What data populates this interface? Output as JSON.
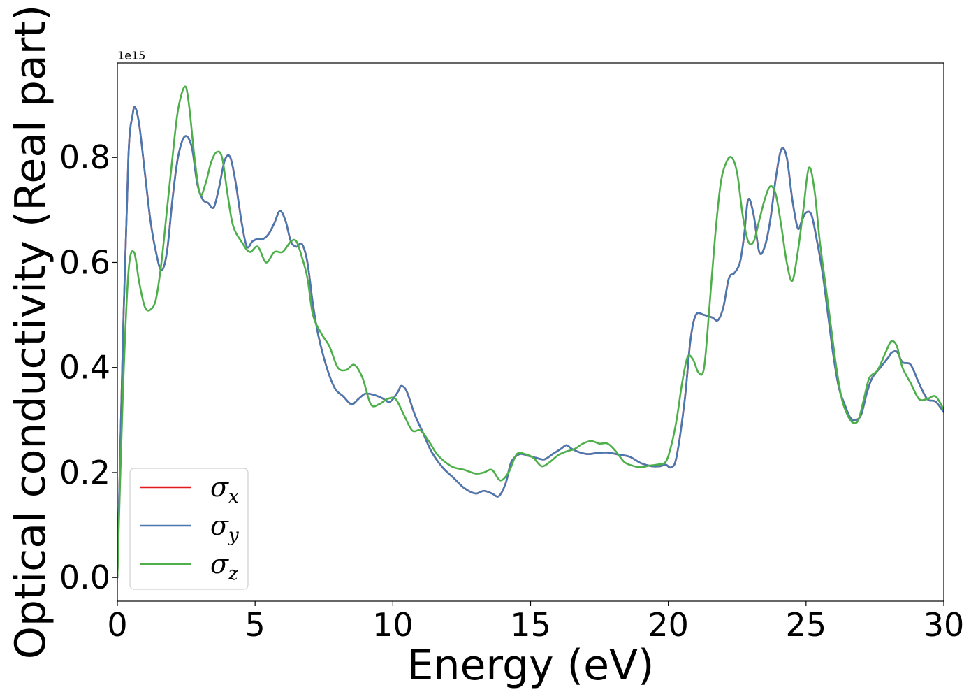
{
  "chart_data": {
    "type": "line",
    "xlabel": "Energy (eV)",
    "ylabel": "Optical conductivity (Real part)",
    "y_offset_text": "1e15",
    "xlim": [
      0,
      30
    ],
    "ylim": [
      -0.045,
      0.98
    ],
    "x_ticks": [
      0,
      5,
      10,
      15,
      20,
      25,
      30
    ],
    "x_tick_labels": [
      "0",
      "5",
      "10",
      "15",
      "20",
      "25",
      "30"
    ],
    "y_ticks": [
      0.0,
      0.2,
      0.4,
      0.6,
      0.8
    ],
    "y_tick_labels": [
      "0.0",
      "0.2",
      "0.4",
      "0.6",
      "0.8"
    ],
    "grid": false,
    "legend_position": "lower-left",
    "series": [
      {
        "name": "σx",
        "symbol": "σ",
        "subscript": "x",
        "color": "#e41a1c",
        "x": [
          0,
          0.2,
          0.4,
          0.55,
          0.65,
          0.8,
          1.0,
          1.2,
          1.4,
          1.6,
          1.8,
          2.0,
          2.2,
          2.45,
          2.7,
          2.9,
          3.1,
          3.3,
          3.5,
          3.7,
          3.9,
          4.1,
          4.3,
          4.5,
          4.7,
          4.9,
          5.1,
          5.3,
          5.5,
          5.7,
          5.9,
          6.1,
          6.3,
          6.5,
          6.7,
          6.9,
          7.1,
          7.3,
          7.6,
          7.9,
          8.2,
          8.5,
          8.75,
          9.0,
          9.3,
          9.6,
          9.9,
          10.2,
          10.3,
          10.5,
          10.8,
          11.1,
          11.4,
          11.8,
          12.2,
          12.6,
          13.0,
          13.3,
          13.6,
          13.85,
          14.1,
          14.3,
          14.6,
          14.9,
          15.2,
          15.5,
          15.8,
          16.1,
          16.3,
          16.5,
          16.8,
          17.1,
          17.4,
          17.8,
          18.2,
          18.6,
          19.0,
          19.4,
          19.7,
          19.9,
          20.1,
          20.3,
          20.6,
          20.8,
          21.0,
          21.3,
          21.6,
          21.8,
          22.0,
          22.2,
          22.4,
          22.6,
          22.75,
          22.9,
          23.1,
          23.3,
          23.5,
          23.7,
          23.9,
          24.1,
          24.3,
          24.5,
          24.7,
          24.85,
          25.0,
          25.2,
          25.4,
          25.6,
          25.8,
          26.0,
          26.2,
          26.4,
          26.6,
          26.8,
          27.0,
          27.2,
          27.4,
          27.7,
          28.0,
          28.1,
          28.3,
          28.5,
          28.8,
          29.1,
          29.4,
          29.7,
          30.0
        ],
        "y": [
          0.0,
          0.45,
          0.8,
          0.88,
          0.895,
          0.86,
          0.77,
          0.68,
          0.62,
          0.585,
          0.62,
          0.72,
          0.8,
          0.84,
          0.82,
          0.75,
          0.72,
          0.713,
          0.705,
          0.745,
          0.795,
          0.8,
          0.75,
          0.68,
          0.63,
          0.64,
          0.645,
          0.645,
          0.655,
          0.675,
          0.698,
          0.68,
          0.64,
          0.63,
          0.635,
          0.6,
          0.52,
          0.46,
          0.4,
          0.36,
          0.345,
          0.33,
          0.34,
          0.35,
          0.348,
          0.342,
          0.335,
          0.355,
          0.365,
          0.355,
          0.31,
          0.275,
          0.24,
          0.21,
          0.19,
          0.17,
          0.16,
          0.165,
          0.16,
          0.155,
          0.18,
          0.22,
          0.235,
          0.232,
          0.228,
          0.225,
          0.235,
          0.245,
          0.252,
          0.245,
          0.238,
          0.235,
          0.237,
          0.238,
          0.234,
          0.23,
          0.218,
          0.212,
          0.212,
          0.215,
          0.21,
          0.23,
          0.34,
          0.45,
          0.5,
          0.5,
          0.495,
          0.49,
          0.515,
          0.57,
          0.58,
          0.6,
          0.65,
          0.72,
          0.69,
          0.62,
          0.63,
          0.68,
          0.76,
          0.815,
          0.8,
          0.72,
          0.665,
          0.68,
          0.695,
          0.69,
          0.64,
          0.58,
          0.5,
          0.42,
          0.36,
          0.33,
          0.305,
          0.3,
          0.31,
          0.35,
          0.38,
          0.4,
          0.42,
          0.428,
          0.43,
          0.41,
          0.405,
          0.37,
          0.34,
          0.335,
          0.315
        ]
      },
      {
        "name": "σy",
        "symbol": "σ",
        "subscript": "y",
        "color": "#4a78b0",
        "x": [
          0,
          0.2,
          0.4,
          0.55,
          0.65,
          0.8,
          1.0,
          1.2,
          1.4,
          1.6,
          1.8,
          2.0,
          2.2,
          2.45,
          2.7,
          2.9,
          3.1,
          3.3,
          3.5,
          3.7,
          3.9,
          4.1,
          4.3,
          4.5,
          4.7,
          4.9,
          5.1,
          5.3,
          5.5,
          5.7,
          5.9,
          6.1,
          6.3,
          6.5,
          6.7,
          6.9,
          7.1,
          7.3,
          7.6,
          7.9,
          8.2,
          8.5,
          8.75,
          9.0,
          9.3,
          9.6,
          9.9,
          10.2,
          10.3,
          10.5,
          10.8,
          11.1,
          11.4,
          11.8,
          12.2,
          12.6,
          13.0,
          13.3,
          13.6,
          13.85,
          14.1,
          14.3,
          14.6,
          14.9,
          15.2,
          15.5,
          15.8,
          16.1,
          16.3,
          16.5,
          16.8,
          17.1,
          17.4,
          17.8,
          18.2,
          18.6,
          19.0,
          19.4,
          19.7,
          19.9,
          20.1,
          20.3,
          20.6,
          20.8,
          21.0,
          21.3,
          21.6,
          21.8,
          22.0,
          22.2,
          22.4,
          22.6,
          22.75,
          22.9,
          23.1,
          23.3,
          23.5,
          23.7,
          23.9,
          24.1,
          24.3,
          24.5,
          24.7,
          24.85,
          25.0,
          25.2,
          25.4,
          25.6,
          25.8,
          26.0,
          26.2,
          26.4,
          26.6,
          26.8,
          27.0,
          27.2,
          27.4,
          27.7,
          28.0,
          28.1,
          28.3,
          28.5,
          28.8,
          29.1,
          29.4,
          29.7,
          30.0
        ],
        "y": [
          0.0,
          0.45,
          0.8,
          0.88,
          0.895,
          0.86,
          0.77,
          0.68,
          0.62,
          0.585,
          0.62,
          0.72,
          0.8,
          0.84,
          0.82,
          0.75,
          0.72,
          0.713,
          0.705,
          0.745,
          0.795,
          0.8,
          0.75,
          0.68,
          0.63,
          0.64,
          0.645,
          0.645,
          0.655,
          0.675,
          0.698,
          0.68,
          0.64,
          0.63,
          0.635,
          0.6,
          0.52,
          0.46,
          0.4,
          0.36,
          0.345,
          0.33,
          0.34,
          0.35,
          0.348,
          0.342,
          0.335,
          0.355,
          0.365,
          0.355,
          0.31,
          0.275,
          0.24,
          0.21,
          0.19,
          0.17,
          0.16,
          0.165,
          0.16,
          0.155,
          0.18,
          0.22,
          0.235,
          0.232,
          0.228,
          0.225,
          0.235,
          0.245,
          0.252,
          0.245,
          0.238,
          0.235,
          0.237,
          0.238,
          0.234,
          0.23,
          0.218,
          0.212,
          0.212,
          0.215,
          0.21,
          0.23,
          0.34,
          0.45,
          0.5,
          0.5,
          0.495,
          0.49,
          0.515,
          0.57,
          0.58,
          0.6,
          0.65,
          0.72,
          0.69,
          0.62,
          0.63,
          0.68,
          0.76,
          0.815,
          0.8,
          0.72,
          0.665,
          0.68,
          0.695,
          0.69,
          0.64,
          0.58,
          0.5,
          0.42,
          0.36,
          0.33,
          0.305,
          0.3,
          0.31,
          0.35,
          0.38,
          0.4,
          0.42,
          0.428,
          0.43,
          0.41,
          0.405,
          0.37,
          0.34,
          0.335,
          0.315
        ]
      },
      {
        "name": "σz",
        "symbol": "σ",
        "subscript": "z",
        "color": "#4daf4a",
        "x": [
          0,
          0.2,
          0.4,
          0.6,
          0.8,
          1.0,
          1.2,
          1.4,
          1.6,
          1.8,
          2.0,
          2.2,
          2.45,
          2.6,
          2.8,
          3.0,
          3.2,
          3.4,
          3.6,
          3.8,
          4.0,
          4.2,
          4.5,
          4.8,
          5.1,
          5.4,
          5.7,
          6.0,
          6.3,
          6.5,
          6.7,
          6.9,
          7.1,
          7.4,
          7.7,
          8.0,
          8.3,
          8.6,
          8.9,
          9.2,
          9.5,
          9.8,
          10.1,
          10.4,
          10.7,
          11.0,
          11.3,
          11.6,
          11.9,
          12.2,
          12.6,
          13.0,
          13.3,
          13.6,
          13.9,
          14.2,
          14.5,
          14.8,
          15.1,
          15.4,
          15.7,
          16.0,
          16.3,
          16.6,
          16.9,
          17.2,
          17.5,
          17.8,
          18.1,
          18.4,
          18.7,
          19.0,
          19.3,
          19.6,
          19.9,
          20.1,
          20.3,
          20.5,
          20.7,
          20.9,
          21.1,
          21.3,
          21.5,
          21.7,
          21.9,
          22.1,
          22.3,
          22.5,
          22.7,
          22.9,
          23.1,
          23.3,
          23.5,
          23.7,
          23.9,
          24.1,
          24.3,
          24.5,
          24.7,
          24.9,
          25.1,
          25.3,
          25.5,
          25.7,
          25.9,
          26.1,
          26.3,
          26.5,
          26.7,
          26.9,
          27.1,
          27.3,
          27.6,
          27.9,
          28.1,
          28.3,
          28.5,
          28.8,
          29.1,
          29.4,
          29.7,
          30.0
        ],
        "y": [
          0.0,
          0.35,
          0.58,
          0.62,
          0.56,
          0.515,
          0.51,
          0.53,
          0.6,
          0.7,
          0.8,
          0.89,
          0.935,
          0.9,
          0.8,
          0.73,
          0.75,
          0.79,
          0.81,
          0.8,
          0.73,
          0.67,
          0.64,
          0.62,
          0.63,
          0.6,
          0.62,
          0.62,
          0.64,
          0.64,
          0.61,
          0.57,
          0.5,
          0.465,
          0.44,
          0.4,
          0.395,
          0.405,
          0.38,
          0.33,
          0.33,
          0.34,
          0.34,
          0.31,
          0.28,
          0.28,
          0.26,
          0.235,
          0.22,
          0.21,
          0.205,
          0.198,
          0.2,
          0.205,
          0.185,
          0.2,
          0.235,
          0.235,
          0.228,
          0.212,
          0.22,
          0.233,
          0.24,
          0.245,
          0.255,
          0.26,
          0.255,
          0.255,
          0.24,
          0.22,
          0.213,
          0.21,
          0.213,
          0.215,
          0.22,
          0.25,
          0.3,
          0.37,
          0.42,
          0.415,
          0.39,
          0.4,
          0.52,
          0.65,
          0.75,
          0.79,
          0.8,
          0.77,
          0.69,
          0.64,
          0.64,
          0.68,
          0.72,
          0.745,
          0.73,
          0.67,
          0.6,
          0.565,
          0.62,
          0.7,
          0.78,
          0.74,
          0.64,
          0.56,
          0.48,
          0.4,
          0.34,
          0.31,
          0.295,
          0.3,
          0.34,
          0.38,
          0.395,
          0.43,
          0.45,
          0.44,
          0.4,
          0.37,
          0.34,
          0.34,
          0.345,
          0.32
        ]
      }
    ]
  }
}
